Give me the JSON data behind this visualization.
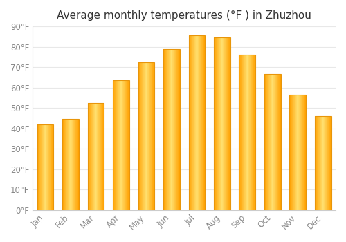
{
  "title": "Average monthly temperatures (°F ) in Zhuzhou",
  "months": [
    "Jan",
    "Feb",
    "Mar",
    "Apr",
    "May",
    "Jun",
    "Jul",
    "Aug",
    "Sep",
    "Oct",
    "Nov",
    "Dec"
  ],
  "values": [
    42,
    44.5,
    52.5,
    63.5,
    72.5,
    79,
    85.5,
    84.5,
    76,
    66.5,
    56.5,
    46
  ],
  "bar_color_edge": "#E8950A",
  "bar_color_center": "#FFE070",
  "bar_color_mid": "#FFBB20",
  "ylim": [
    0,
    90
  ],
  "yticks": [
    0,
    10,
    20,
    30,
    40,
    50,
    60,
    70,
    80,
    90
  ],
  "background_color": "#FFFFFF",
  "grid_color": "#E8E8E8",
  "title_fontsize": 11,
  "tick_fontsize": 8.5,
  "tick_color": "#888888",
  "bar_width": 0.65,
  "figsize": [
    5.0,
    3.5
  ],
  "dpi": 100
}
